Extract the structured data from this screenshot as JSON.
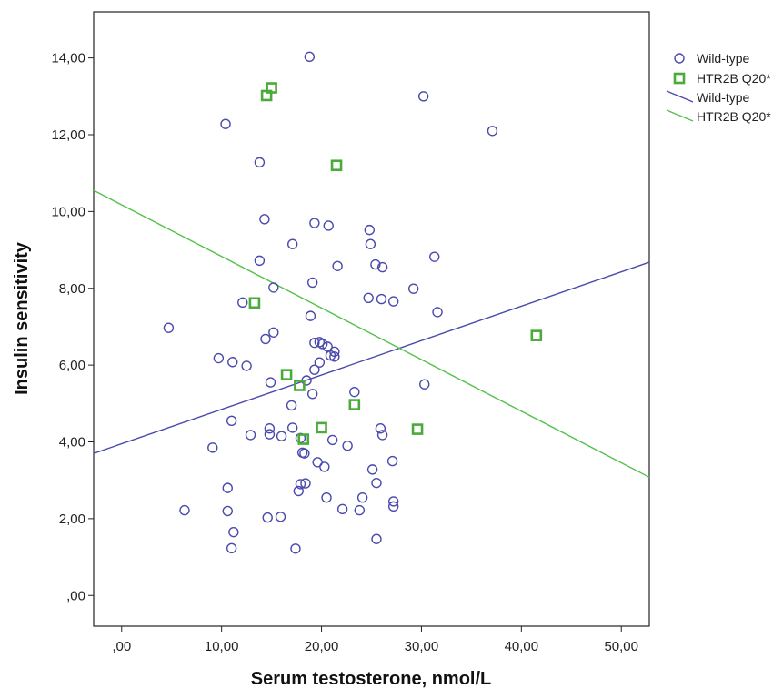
{
  "chart_data": {
    "type": "scatter",
    "xlabel": "Serum testosterone, nmol/L",
    "ylabel": "Insulin sensitivity",
    "xlim": [
      -2.8,
      52.8
    ],
    "ylim": [
      -0.8,
      15.2
    ],
    "x_ticks": [
      {
        "value": 0,
        "label": ",00"
      },
      {
        "value": 10,
        "label": "10,00"
      },
      {
        "value": 20,
        "label": "20,00"
      },
      {
        "value": 30,
        "label": "30,00"
      },
      {
        "value": 40,
        "label": "40,00"
      },
      {
        "value": 50,
        "label": "50,00"
      }
    ],
    "y_ticks": [
      {
        "value": 0,
        "label": ",00"
      },
      {
        "value": 2,
        "label": "2,00"
      },
      {
        "value": 4,
        "label": "4,00"
      },
      {
        "value": 6,
        "label": "6,00"
      },
      {
        "value": 8,
        "label": "8,00"
      },
      {
        "value": 10,
        "label": "10,00"
      },
      {
        "value": 12,
        "label": "12,00"
      },
      {
        "value": 14,
        "label": "14,00"
      }
    ],
    "grid": false,
    "legend_position": "right",
    "legend": [
      {
        "label": "Wild-type",
        "kind": "marker",
        "marker": "circle",
        "series": "wild"
      },
      {
        "label": "HTR2B Q20*",
        "kind": "marker",
        "marker": "square",
        "series": "htr"
      },
      {
        "label": "Wild-type",
        "kind": "line",
        "series": "wild"
      },
      {
        "label": "HTR2B Q20*",
        "kind": "line",
        "series": "htr"
      }
    ],
    "series": [
      {
        "name": "Wild-type",
        "key": "wild",
        "marker": "circle",
        "color": "#4a4aad",
        "points": [
          [
            18.8,
            14.03
          ],
          [
            30.2,
            13.0
          ],
          [
            10.4,
            12.28
          ],
          [
            37.1,
            12.1
          ],
          [
            13.8,
            11.28
          ],
          [
            14.3,
            9.8
          ],
          [
            19.3,
            9.7
          ],
          [
            20.7,
            9.63
          ],
          [
            24.8,
            9.52
          ],
          [
            17.1,
            9.15
          ],
          [
            24.9,
            9.15
          ],
          [
            31.3,
            8.82
          ],
          [
            13.8,
            8.72
          ],
          [
            25.4,
            8.62
          ],
          [
            21.6,
            8.58
          ],
          [
            26.1,
            8.55
          ],
          [
            19.1,
            8.15
          ],
          [
            15.2,
            8.02
          ],
          [
            29.2,
            7.99
          ],
          [
            24.7,
            7.75
          ],
          [
            26.0,
            7.72
          ],
          [
            27.2,
            7.66
          ],
          [
            12.1,
            7.63
          ],
          [
            31.6,
            7.38
          ],
          [
            18.9,
            7.28
          ],
          [
            4.7,
            6.97
          ],
          [
            15.2,
            6.85
          ],
          [
            14.4,
            6.68
          ],
          [
            19.3,
            6.58
          ],
          [
            19.8,
            6.6
          ],
          [
            20.1,
            6.55
          ],
          [
            20.6,
            6.48
          ],
          [
            21.3,
            6.35
          ],
          [
            20.9,
            6.25
          ],
          [
            21.3,
            6.22
          ],
          [
            9.7,
            6.18
          ],
          [
            11.1,
            6.08
          ],
          [
            19.8,
            6.07
          ],
          [
            12.5,
            5.98
          ],
          [
            19.3,
            5.88
          ],
          [
            18.5,
            5.6
          ],
          [
            14.9,
            5.55
          ],
          [
            30.3,
            5.5
          ],
          [
            23.3,
            5.3
          ],
          [
            19.1,
            5.25
          ],
          [
            17.0,
            4.95
          ],
          [
            11.0,
            4.55
          ],
          [
            25.9,
            4.35
          ],
          [
            17.1,
            4.37
          ],
          [
            14.8,
            4.35
          ],
          [
            26.1,
            4.18
          ],
          [
            14.8,
            4.2
          ],
          [
            12.9,
            4.18
          ],
          [
            16.0,
            4.15
          ],
          [
            17.9,
            4.1
          ],
          [
            21.1,
            4.05
          ],
          [
            22.6,
            3.9
          ],
          [
            9.1,
            3.85
          ],
          [
            18.1,
            3.72
          ],
          [
            18.3,
            3.7
          ],
          [
            19.6,
            3.47
          ],
          [
            27.1,
            3.5
          ],
          [
            20.3,
            3.35
          ],
          [
            25.1,
            3.28
          ],
          [
            25.5,
            2.93
          ],
          [
            18.4,
            2.92
          ],
          [
            17.9,
            2.9
          ],
          [
            17.7,
            2.72
          ],
          [
            10.6,
            2.8
          ],
          [
            20.5,
            2.55
          ],
          [
            24.1,
            2.55
          ],
          [
            27.2,
            2.45
          ],
          [
            27.2,
            2.32
          ],
          [
            22.1,
            2.25
          ],
          [
            23.8,
            2.22
          ],
          [
            6.3,
            2.22
          ],
          [
            10.6,
            2.2
          ],
          [
            15.9,
            2.05
          ],
          [
            14.6,
            2.03
          ],
          [
            11.2,
            1.65
          ],
          [
            25.5,
            1.47
          ],
          [
            11.0,
            1.23
          ],
          [
            17.4,
            1.22
          ]
        ]
      },
      {
        "name": "HTR2B Q20*",
        "key": "htr",
        "marker": "square",
        "color": "#4aaa3a",
        "points": [
          [
            15.0,
            13.22
          ],
          [
            14.5,
            13.02
          ],
          [
            21.5,
            11.2
          ],
          [
            13.3,
            7.62
          ],
          [
            41.5,
            6.77
          ],
          [
            16.5,
            5.75
          ],
          [
            17.8,
            5.47
          ],
          [
            23.3,
            4.97
          ],
          [
            20.0,
            4.37
          ],
          [
            29.6,
            4.33
          ],
          [
            18.2,
            4.07
          ]
        ]
      }
    ],
    "fit_lines": [
      {
        "series": "wild",
        "color": "#4a4aad",
        "points": [
          [
            -2.8,
            3.7
          ],
          [
            52.8,
            8.68
          ]
        ]
      },
      {
        "series": "htr",
        "color": "#55c24a",
        "points": [
          [
            -2.8,
            10.55
          ],
          [
            52.8,
            3.08
          ]
        ]
      }
    ]
  }
}
